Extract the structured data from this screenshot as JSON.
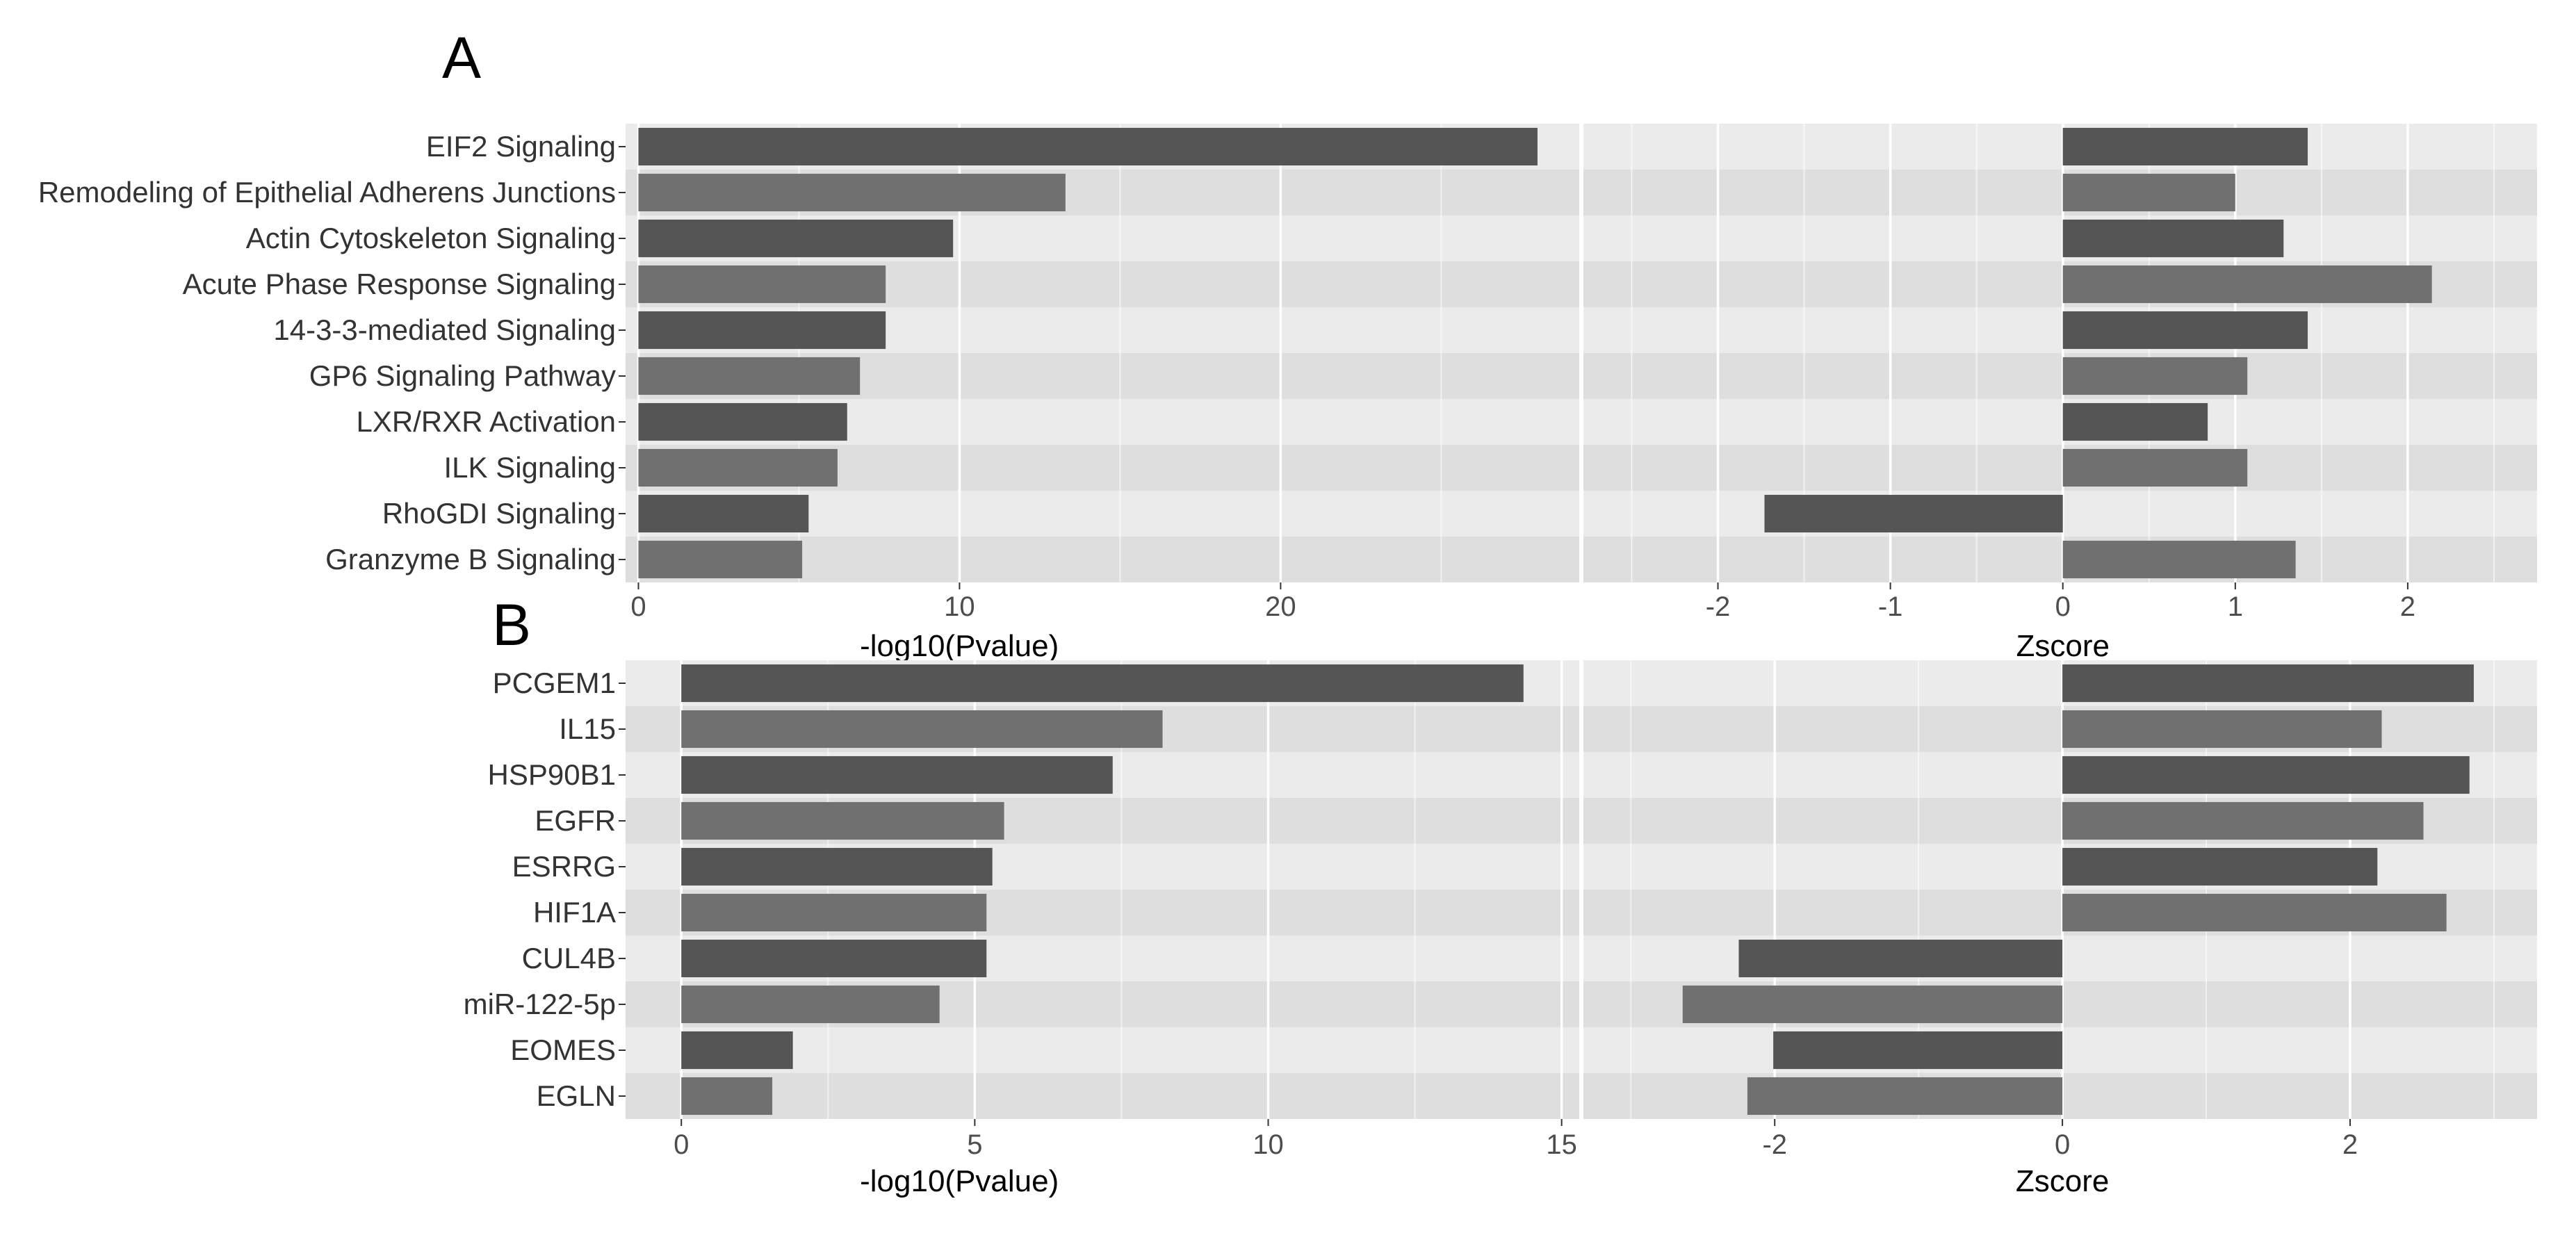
{
  "panels": [
    {
      "letter": "A",
      "categories": [
        "EIF2 Signaling",
        "Remodeling of Epithelial Adherens Junctions",
        "Actin Cytoskeleton Signaling",
        "Acute Phase Response Signaling",
        "14-3-3-mediated Signaling",
        "GP6 Signaling Pathway",
        "LXR/RXR Activation",
        "ILK Signaling",
        "RhoGDI Signaling",
        "Granzyme B Signaling"
      ],
      "left": {
        "xlabel": "-log10(Pvalue)",
        "xlim": [
          -0.4,
          29.3
        ],
        "ticks": [
          0,
          10,
          20
        ],
        "values": [
          28.0,
          13.3,
          9.8,
          7.7,
          7.7,
          6.9,
          6.5,
          6.2,
          5.3,
          5.1
        ]
      },
      "right": {
        "xlabel": "Zscore",
        "xlim": [
          -2.78,
          2.75
        ],
        "ticks": [
          -2,
          -1,
          0,
          1,
          2
        ],
        "values": [
          1.42,
          1.0,
          1.28,
          2.14,
          1.42,
          1.07,
          0.84,
          1.07,
          -1.73,
          1.35
        ]
      }
    },
    {
      "letter": "B",
      "categories": [
        "PCGEM1",
        "IL15",
        "HSP90B1",
        "EGFR",
        "ESRRG",
        "HIF1A",
        "CUL4B",
        "miR-122-5p",
        "EOMES",
        "EGLN"
      ],
      "left": {
        "xlabel": "-log10(Pvalue)",
        "xlim": [
          -0.95,
          15.3
        ],
        "ticks": [
          0,
          5,
          10,
          15
        ],
        "values": [
          14.35,
          8.2,
          7.35,
          5.5,
          5.3,
          5.2,
          5.2,
          4.4,
          1.9,
          1.55
        ]
      },
      "right": {
        "xlabel": "Zscore",
        "xlim": [
          -3.33,
          3.3
        ],
        "ticks": [
          -2,
          0,
          2
        ],
        "values": [
          2.86,
          2.22,
          2.83,
          2.51,
          2.19,
          2.67,
          -2.25,
          -2.64,
          -2.01,
          -2.19
        ]
      }
    }
  ],
  "colors": {
    "panel_bg": "#ebebeb",
    "band_alt": "#dedede",
    "grid": "#ffffff",
    "bar_dark": "#555555",
    "bar_light": "#707070"
  },
  "chart_data": [
    {
      "type": "bar",
      "orientation": "horizontal",
      "panel": "A",
      "categories": [
        "EIF2 Signaling",
        "Remodeling of Epithelial Adherens Junctions",
        "Actin Cytoskeleton Signaling",
        "Acute Phase Response Signaling",
        "14-3-3-mediated Signaling",
        "GP6 Signaling Pathway",
        "LXR/RXR Activation",
        "ILK Signaling",
        "RhoGDI Signaling",
        "Granzyme B Signaling"
      ],
      "xlabel": "-log10(Pvalue)",
      "values": [
        28.0,
        13.3,
        9.8,
        7.7,
        7.7,
        6.9,
        6.5,
        6.2,
        5.3,
        5.1
      ],
      "xlim": [
        -0.4,
        29.3
      ],
      "grid": true
    },
    {
      "type": "bar",
      "orientation": "horizontal",
      "panel": "A",
      "categories": [
        "EIF2 Signaling",
        "Remodeling of Epithelial Adherens Junctions",
        "Actin Cytoskeleton Signaling",
        "Acute Phase Response Signaling",
        "14-3-3-mediated Signaling",
        "GP6 Signaling Pathway",
        "LXR/RXR Activation",
        "ILK Signaling",
        "RhoGDI Signaling",
        "Granzyme B Signaling"
      ],
      "xlabel": "Zscore",
      "values": [
        1.42,
        1.0,
        1.28,
        2.14,
        1.42,
        1.07,
        0.84,
        1.07,
        -1.73,
        1.35
      ],
      "xlim": [
        -2.78,
        2.75
      ],
      "grid": true
    },
    {
      "type": "bar",
      "orientation": "horizontal",
      "panel": "B",
      "categories": [
        "PCGEM1",
        "IL15",
        "HSP90B1",
        "EGFR",
        "ESRRG",
        "HIF1A",
        "CUL4B",
        "miR-122-5p",
        "EOMES",
        "EGLN"
      ],
      "xlabel": "-log10(Pvalue)",
      "values": [
        14.35,
        8.2,
        7.35,
        5.5,
        5.3,
        5.2,
        5.2,
        4.4,
        1.9,
        1.55
      ],
      "xlim": [
        -0.95,
        15.3
      ],
      "grid": true
    },
    {
      "type": "bar",
      "orientation": "horizontal",
      "panel": "B",
      "categories": [
        "PCGEM1",
        "IL15",
        "HSP90B1",
        "EGFR",
        "ESRRG",
        "HIF1A",
        "CUL4B",
        "miR-122-5p",
        "EOMES",
        "EGLN"
      ],
      "xlabel": "Zscore",
      "values": [
        2.86,
        2.22,
        2.83,
        2.51,
        2.19,
        2.67,
        -2.25,
        -2.64,
        -2.01,
        -2.19
      ],
      "xlim": [
        -3.33,
        3.3
      ],
      "grid": true
    }
  ]
}
